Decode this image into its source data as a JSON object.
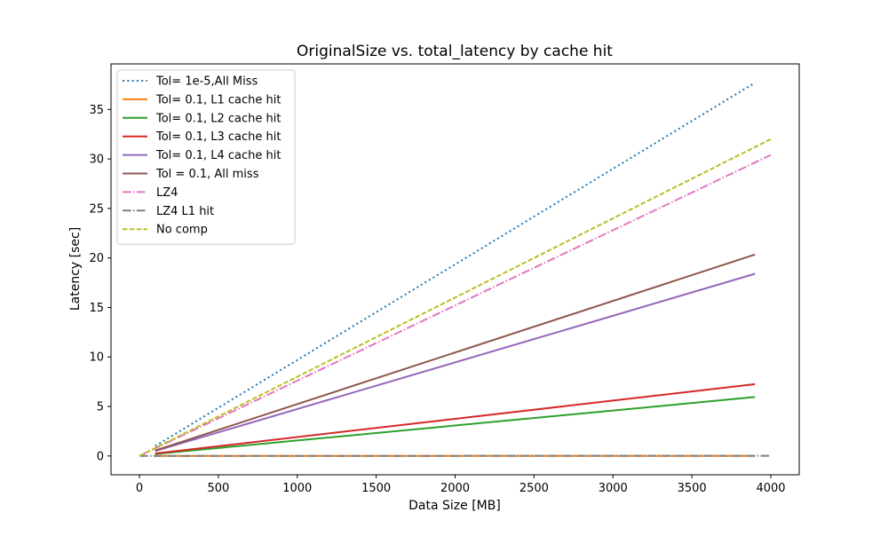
{
  "chart_data": {
    "type": "line",
    "title": "OriginalSize vs. total_latency by cache hit",
    "xlabel": "Data Size [MB]",
    "ylabel": "Latency [sec]",
    "xlim": [
      -180,
      4180
    ],
    "ylim": [
      -1.9,
      39.6
    ],
    "xticks": [
      0,
      500,
      1000,
      1500,
      2000,
      2500,
      3000,
      3500,
      4000
    ],
    "yticks": [
      0,
      5,
      10,
      15,
      20,
      25,
      30,
      35
    ],
    "grid": false,
    "legend_position": "top-left",
    "series": [
      {
        "name": "Tol= 1e-5,All Miss",
        "color": "#1f77b4",
        "dash": "dotted",
        "x": [
          100,
          3900
        ],
        "y": [
          1.0,
          37.7
        ]
      },
      {
        "name": "Tol= 0.1, L1 cache hit",
        "color": "#ff7f0e",
        "dash": "solid",
        "x": [
          100,
          3900
        ],
        "y": [
          0.01,
          0.01
        ]
      },
      {
        "name": "Tol= 0.1, L2 cache hit",
        "color": "#2ca02c",
        "dash": "solid",
        "x": [
          100,
          3900
        ],
        "y": [
          0.2,
          5.95
        ]
      },
      {
        "name": "Tol= 0.1, L3 cache hit",
        "color": "#d62728",
        "dash": "solid",
        "x": [
          100,
          3900
        ],
        "y": [
          0.25,
          7.25
        ]
      },
      {
        "name": "Tol= 0.1, L4 cache hit",
        "color": "#9467bd",
        "dash": "solid",
        "x": [
          100,
          3900
        ],
        "y": [
          0.5,
          18.4
        ]
      },
      {
        "name": "Tol = 0.1, All miss",
        "color": "#8c564b",
        "dash": "solid",
        "x": [
          100,
          3900
        ],
        "y": [
          0.55,
          20.35
        ]
      },
      {
        "name": "LZ4",
        "color": "#e377c2",
        "dash": "dashdot",
        "x": [
          0,
          4000
        ],
        "y": [
          0.0,
          30.4
        ]
      },
      {
        "name": "LZ4 L1 hit",
        "color": "#7f7f7f",
        "dash": "dashdot",
        "x": [
          0,
          4000
        ],
        "y": [
          0.0,
          0.02
        ]
      },
      {
        "name": "No comp",
        "color": "#bcbd22",
        "dash": "dashed",
        "x": [
          0,
          4000
        ],
        "y": [
          0.0,
          32.0
        ]
      }
    ]
  }
}
